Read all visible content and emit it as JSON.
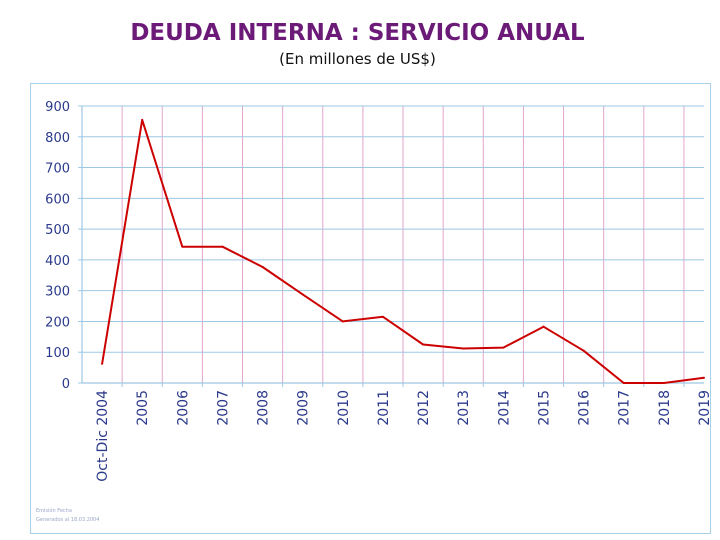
{
  "title": "DEUDA INTERNA : SERVICIO ANUAL",
  "subtitle": "(En millones de US$)",
  "footnote": [
    "Emisión Fecha",
    "Generados al 18.03.2004"
  ],
  "colors": {
    "title": "#6b1a78",
    "line": "#cc0000",
    "grid_h": "#9dc8e4",
    "grid_v": "#e3a5cc",
    "axis_text": "#2b3a8c"
  },
  "chart_data": {
    "type": "line",
    "title": "DEUDA INTERNA : SERVICIO ANUAL",
    "subtitle": "(En millones de US$)",
    "xlabel": "",
    "ylabel": "",
    "ylim": [
      0,
      900
    ],
    "yticks": [
      0,
      100,
      200,
      300,
      400,
      500,
      600,
      700,
      800,
      900
    ],
    "grid": true,
    "legend": "none",
    "categories": [
      "Oct-Dic 2004",
      "2005",
      "2006",
      "2007",
      "2008",
      "2009",
      "2010",
      "2011",
      "2012",
      "2013",
      "2014",
      "2015",
      "2016",
      "2017",
      "2018",
      "2019"
    ],
    "series": [
      {
        "values": [
          62,
          855,
          443,
          443,
          377,
          288,
          200,
          215,
          125,
          112,
          115,
          183,
          105,
          0,
          0,
          17
        ]
      }
    ]
  }
}
